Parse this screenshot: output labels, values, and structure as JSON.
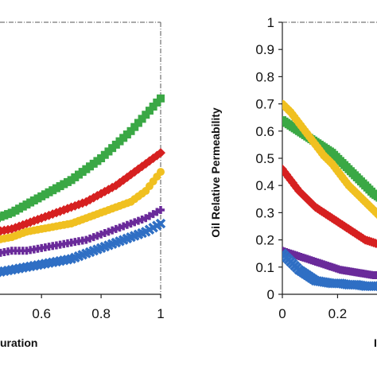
{
  "chart_data": [
    {
      "type": "scatter",
      "title": "",
      "xlabel": "uration",
      "ylabel": "",
      "xlim": [
        0.45,
        1.0
      ],
      "ylim": [
        0,
        1
      ],
      "xticks": [
        "0.6",
        "0.8",
        "1"
      ],
      "xtick_values": [
        0.6,
        0.8,
        1.0
      ],
      "grid": false,
      "series": [
        {
          "color": "#3aa845",
          "marker": "square",
          "x": [
            0.45,
            0.5,
            0.55,
            0.6,
            0.65,
            0.7,
            0.75,
            0.8,
            0.85,
            0.9,
            0.95,
            1.0
          ],
          "y": [
            0.28,
            0.3,
            0.33,
            0.36,
            0.39,
            0.42,
            0.46,
            0.5,
            0.55,
            0.6,
            0.66,
            0.72
          ]
        },
        {
          "color": "#d62020",
          "marker": "diamond",
          "x": [
            0.45,
            0.5,
            0.55,
            0.6,
            0.65,
            0.7,
            0.75,
            0.8,
            0.85,
            0.9,
            0.95,
            1.0
          ],
          "y": [
            0.23,
            0.24,
            0.26,
            0.28,
            0.3,
            0.32,
            0.34,
            0.37,
            0.4,
            0.44,
            0.48,
            0.52
          ]
        },
        {
          "color": "#f0c020",
          "marker": "circle",
          "x": [
            0.45,
            0.5,
            0.55,
            0.6,
            0.65,
            0.7,
            0.75,
            0.8,
            0.85,
            0.9,
            0.95,
            1.0
          ],
          "y": [
            0.2,
            0.21,
            0.23,
            0.24,
            0.25,
            0.26,
            0.28,
            0.3,
            0.32,
            0.34,
            0.38,
            0.45
          ]
        },
        {
          "color": "#6a2a9a",
          "marker": "plus",
          "x": [
            0.45,
            0.5,
            0.55,
            0.6,
            0.65,
            0.7,
            0.75,
            0.8,
            0.85,
            0.9,
            0.95,
            1.0
          ],
          "y": [
            0.15,
            0.16,
            0.16,
            0.17,
            0.18,
            0.19,
            0.2,
            0.22,
            0.24,
            0.26,
            0.28,
            0.31
          ]
        },
        {
          "color": "#2f6fc4",
          "marker": "x",
          "x": [
            0.45,
            0.5,
            0.55,
            0.6,
            0.65,
            0.7,
            0.75,
            0.8,
            0.85,
            0.9,
            0.95,
            1.0
          ],
          "y": [
            0.08,
            0.09,
            0.1,
            0.11,
            0.12,
            0.13,
            0.15,
            0.17,
            0.19,
            0.21,
            0.23,
            0.26
          ]
        }
      ]
    },
    {
      "type": "scatter",
      "title": "",
      "xlabel": "I",
      "ylabel": "Oil Relative Permeability",
      "xlim": [
        0,
        0.36
      ],
      "ylim": [
        0,
        1
      ],
      "xticks": [
        "0",
        "0.2"
      ],
      "xtick_values": [
        0,
        0.2
      ],
      "yticks": [
        "0",
        "0.1",
        "0.2",
        "0.3",
        "0.4",
        "0.5",
        "0.6",
        "0.7",
        "0.8",
        "0.9",
        "1"
      ],
      "ytick_values": [
        0,
        0.1,
        0.2,
        0.3,
        0.4,
        0.5,
        0.6,
        0.7,
        0.8,
        0.9,
        1.0
      ],
      "grid": false,
      "series": [
        {
          "color": "#3aa845",
          "marker": "square",
          "x": [
            0,
            0.03,
            0.06,
            0.09,
            0.12,
            0.15,
            0.18,
            0.21,
            0.24,
            0.27,
            0.3,
            0.33,
            0.36
          ],
          "y": [
            0.64,
            0.62,
            0.6,
            0.58,
            0.56,
            0.54,
            0.52,
            0.49,
            0.46,
            0.43,
            0.4,
            0.37,
            0.35
          ]
        },
        {
          "color": "#f0c020",
          "marker": "circle",
          "x": [
            0,
            0.03,
            0.06,
            0.09,
            0.12,
            0.15,
            0.18,
            0.21,
            0.24,
            0.27,
            0.3,
            0.33,
            0.36
          ],
          "y": [
            0.7,
            0.67,
            0.63,
            0.59,
            0.55,
            0.51,
            0.48,
            0.44,
            0.4,
            0.37,
            0.34,
            0.31,
            0.28
          ]
        },
        {
          "color": "#d62020",
          "marker": "diamond",
          "x": [
            0,
            0.03,
            0.06,
            0.09,
            0.12,
            0.15,
            0.18,
            0.21,
            0.24,
            0.27,
            0.3,
            0.33,
            0.36
          ],
          "y": [
            0.46,
            0.42,
            0.38,
            0.35,
            0.32,
            0.3,
            0.28,
            0.26,
            0.24,
            0.22,
            0.2,
            0.19,
            0.18
          ]
        },
        {
          "color": "#6a2a9a",
          "marker": "plus",
          "x": [
            0,
            0.03,
            0.06,
            0.09,
            0.12,
            0.15,
            0.18,
            0.21,
            0.24,
            0.27,
            0.3,
            0.33,
            0.36
          ],
          "y": [
            0.16,
            0.15,
            0.14,
            0.13,
            0.12,
            0.11,
            0.1,
            0.09,
            0.085,
            0.08,
            0.075,
            0.07,
            0.07
          ]
        },
        {
          "color": "#2f6fc4",
          "marker": "x",
          "x": [
            0,
            0.03,
            0.06,
            0.09,
            0.12,
            0.15,
            0.18,
            0.21,
            0.24,
            0.27,
            0.3,
            0.33,
            0.36
          ],
          "y": [
            0.15,
            0.12,
            0.09,
            0.07,
            0.05,
            0.045,
            0.04,
            0.04,
            0.035,
            0.035,
            0.03,
            0.03,
            0.03
          ]
        }
      ]
    }
  ]
}
